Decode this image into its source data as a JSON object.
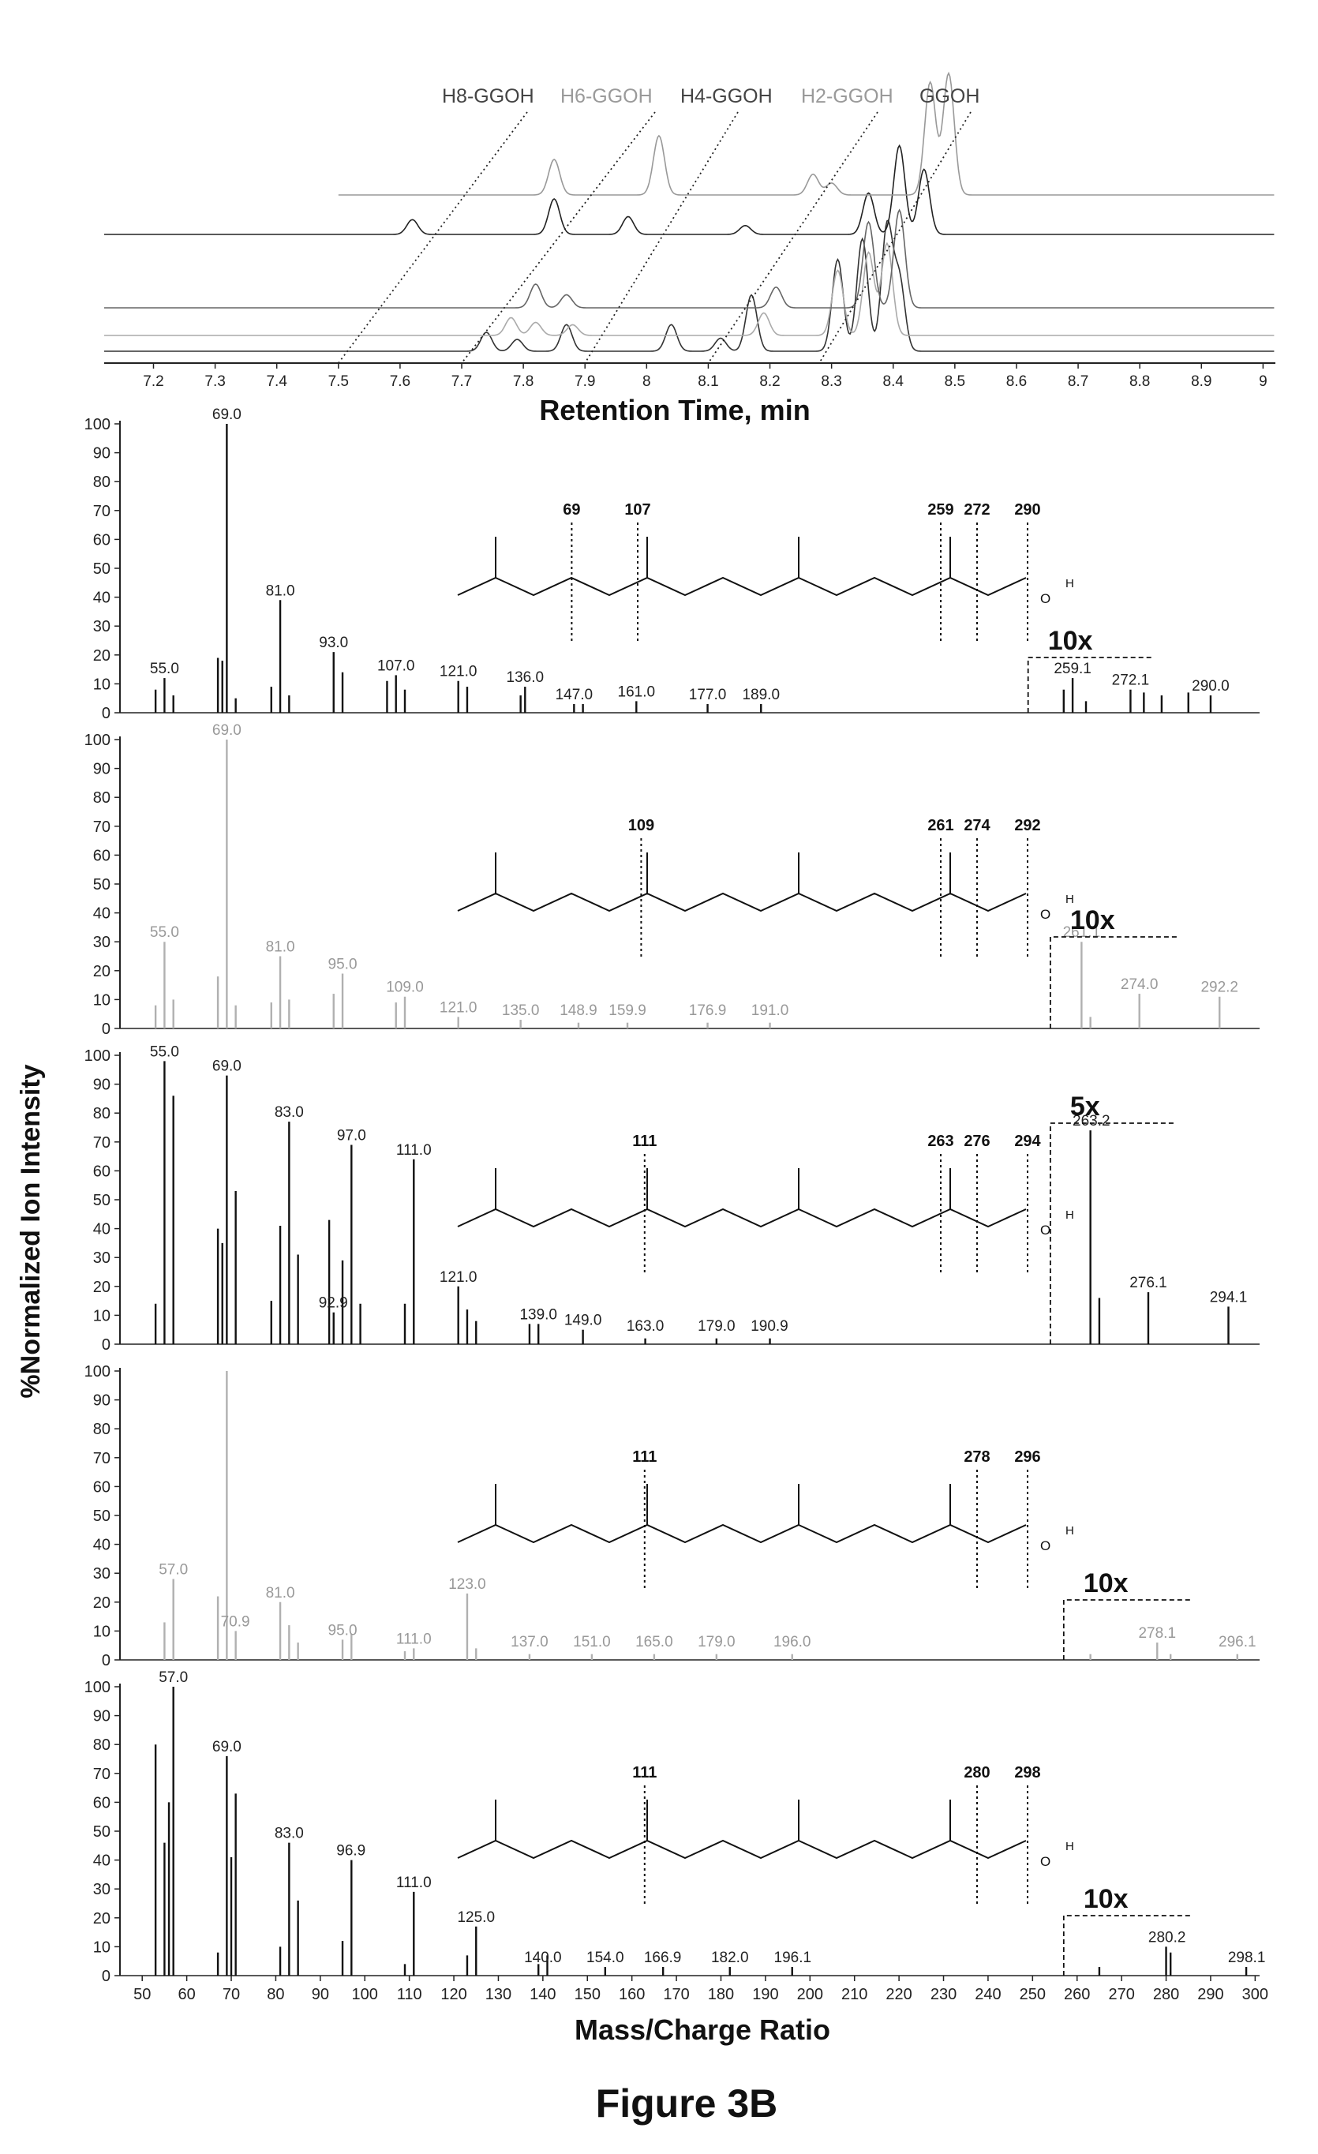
{
  "figure_title": "Figure 3B",
  "chart_data": [
    {
      "type": "line",
      "xlabel": "Retention Time, min",
      "xlim": [
        7.12,
        9.02
      ],
      "xticks": [
        "7.2",
        "7.3",
        "7.4",
        "7.5",
        "7.6",
        "7.7",
        "7.8",
        "7.9",
        "8",
        "8.1",
        "8.2",
        "8.3",
        "8.4",
        "8.5",
        "8.6",
        "8.7",
        "8.8",
        "8.9",
        "9"
      ],
      "compound_labels": [
        "H8-GGOH",
        "H6-GGOH",
        "H4-GGOH",
        "H2-GGOH",
        "GGOH"
      ],
      "series_colors": [
        "#333333",
        "#aaaaaa",
        "#666666",
        "#222222",
        "#999999"
      ],
      "series": [
        {
          "peaks": [
            [
              7.74,
              0.32
            ],
            [
              7.79,
              0.2
            ],
            [
              7.87,
              0.45
            ],
            [
              8.04,
              0.45
            ],
            [
              8.12,
              0.22
            ],
            [
              8.17,
              0.95
            ],
            [
              8.31,
              1.55
            ],
            [
              8.35,
              1.9
            ],
            [
              8.39,
              2.1
            ],
            [
              8.41,
              1.2
            ]
          ]
        },
        {
          "peaks": [
            [
              7.78,
              0.3
            ],
            [
              7.82,
              0.22
            ],
            [
              7.88,
              0.18
            ],
            [
              8.19,
              0.38
            ],
            [
              8.31,
              1.1
            ],
            [
              8.36,
              1.4
            ],
            [
              8.39,
              1.55
            ]
          ]
        },
        {
          "peaks": [
            [
              7.82,
              0.4
            ],
            [
              7.87,
              0.22
            ],
            [
              8.21,
              0.35
            ],
            [
              8.36,
              1.45
            ],
            [
              8.41,
              1.65
            ]
          ]
        },
        {
          "peaks": [
            [
              7.62,
              0.25
            ],
            [
              7.85,
              0.6
            ],
            [
              7.97,
              0.3
            ],
            [
              8.16,
              0.15
            ],
            [
              8.36,
              0.7
            ],
            [
              8.41,
              1.5
            ],
            [
              8.45,
              1.1
            ]
          ]
        },
        {
          "peaks": [
            [
              7.85,
              0.6
            ],
            [
              8.02,
              1.0
            ],
            [
              8.27,
              0.35
            ],
            [
              8.3,
              0.2
            ],
            [
              8.46,
              1.9
            ],
            [
              8.49,
              2.05
            ]
          ]
        }
      ]
    },
    {
      "type": "bar",
      "xlabel": "Mass/Charge Ratio",
      "ylabel": "%Normalized Ion Intensity",
      "xlim": [
        45,
        301
      ],
      "ylim": [
        0,
        100
      ],
      "xticks": [
        "50",
        "60",
        "70",
        "80",
        "90",
        "100",
        "110",
        "120",
        "130",
        "140",
        "150",
        "160",
        "170",
        "180",
        "190",
        "200",
        "210",
        "220",
        "230",
        "240",
        "250",
        "260",
        "270",
        "280",
        "290",
        "300"
      ],
      "yticks": [
        "0",
        "10",
        "20",
        "30",
        "40",
        "50",
        "60",
        "70",
        "80",
        "90",
        "100"
      ],
      "panels": [
        {
          "color": "#111111",
          "scale_label": "10x",
          "scale_from": 249,
          "mass": [
            53,
            55,
            57,
            67,
            68,
            69,
            71,
            79,
            81,
            83,
            93,
            95,
            105,
            107,
            109,
            121,
            123,
            135,
            136,
            147,
            149,
            161,
            177,
            189,
            257,
            259,
            262,
            272,
            275,
            279,
            285,
            290
          ],
          "intensity": [
            8,
            12,
            6,
            19,
            18,
            100,
            5,
            9,
            39,
            6,
            21,
            14,
            11,
            13,
            8,
            11,
            9,
            6,
            9,
            3,
            3,
            4,
            3,
            3,
            8,
            12,
            4,
            8,
            7,
            6,
            7,
            6
          ],
          "labels": [
            [
              55,
              "55.0"
            ],
            [
              69,
              "69.0"
            ],
            [
              81,
              "81.0"
            ],
            [
              93,
              "93.0"
            ],
            [
              107,
              "107.0"
            ],
            [
              121,
              "121.0"
            ],
            [
              136,
              "136.0"
            ],
            [
              147,
              "147.0"
            ],
            [
              161,
              "161.0"
            ],
            [
              177,
              "177.0"
            ],
            [
              189,
              "189.0"
            ],
            [
              259,
              "259.1"
            ],
            [
              272,
              "272.1"
            ],
            [
              290,
              "290.0"
            ]
          ],
          "cuts": [
            "69",
            "107",
            "259",
            "272",
            "290"
          ],
          "cut_x": [
            69,
            107,
            259,
            272,
            290
          ],
          "molecule": "GGOH"
        },
        {
          "color": "#b0b0b0",
          "scale_label": "10x",
          "scale_from": 254,
          "mass": [
            53,
            55,
            57,
            67,
            69,
            71,
            79,
            81,
            83,
            93,
            95,
            107,
            109,
            121,
            135,
            148,
            159,
            177,
            191,
            261,
            263,
            274,
            292
          ],
          "intensity": [
            8,
            30,
            10,
            18,
            100,
            8,
            9,
            25,
            10,
            12,
            19,
            9,
            11,
            4,
            3,
            2,
            2,
            2,
            2,
            30,
            4,
            12,
            11
          ],
          "labels": [
            [
              55,
              "55.0"
            ],
            [
              69,
              "69.0"
            ],
            [
              81,
              "81.0"
            ],
            [
              95,
              "95.0"
            ],
            [
              109,
              "109.0"
            ],
            [
              121,
              "121.0"
            ],
            [
              135,
              "135.0"
            ],
            [
              148,
              "148.9"
            ],
            [
              159,
              "159.9"
            ],
            [
              177,
              "176.9"
            ],
            [
              191,
              "191.0"
            ]
          ],
          "cuts": [
            "109",
            "261",
            "274",
            "292"
          ],
          "cut_x": [
            109,
            261,
            274,
            292
          ],
          "peak_labels_x": [
            [
              261,
              "261.1"
            ],
            [
              274,
              "274.0"
            ],
            [
              292,
              "292.2"
            ]
          ],
          "molecule": "H2-GGOH"
        },
        {
          "color": "#111111",
          "scale_label": "5x",
          "scale_from": 254,
          "mass": [
            53,
            55,
            57,
            67,
            68,
            69,
            71,
            79,
            81,
            83,
            85,
            92,
            93,
            95,
            97,
            99,
            109,
            111,
            121,
            123,
            125,
            137,
            139,
            149,
            163,
            179,
            191,
            263,
            265,
            276,
            294
          ],
          "intensity": [
            14,
            98,
            86,
            40,
            35,
            93,
            53,
            15,
            41,
            77,
            31,
            43,
            11,
            29,
            69,
            14,
            14,
            64,
            20,
            12,
            8,
            7,
            7,
            5,
            2,
            2,
            2,
            74,
            16,
            18,
            13
          ],
          "labels": [
            [
              55,
              "55.0"
            ],
            [
              69,
              "69.0"
            ],
            [
              83,
              "83.0"
            ],
            [
              92.9,
              "92.9"
            ],
            [
              97,
              "97.0"
            ],
            [
              111,
              "111.0"
            ],
            [
              121,
              "121.0"
            ],
            [
              139,
              "139.0"
            ],
            [
              149,
              "149.0"
            ],
            [
              163,
              "163.0"
            ],
            [
              179,
              "179.0"
            ],
            [
              190.9,
              "190.9"
            ],
            [
              263.2,
              "263.2"
            ],
            [
              276,
              "276.1"
            ],
            [
              294,
              "294.1"
            ]
          ],
          "cuts": [
            "111",
            "263",
            "276",
            "294"
          ],
          "cut_x": [
            111,
            263,
            276,
            294
          ],
          "molecule": "H4-GGOH"
        },
        {
          "color": "#b0b0b0",
          "scale_label": "10x",
          "scale_from": 257,
          "mass": [
            55,
            57,
            67,
            69,
            71,
            81,
            83,
            85,
            95,
            97,
            109,
            111,
            123,
            125,
            137,
            151,
            165,
            179,
            196,
            263,
            278,
            281,
            296
          ],
          "intensity": [
            13,
            28,
            22,
            100,
            10,
            20,
            12,
            6,
            7,
            9,
            3,
            4,
            23,
            4,
            2,
            2,
            2,
            2,
            2,
            2,
            6,
            2,
            2
          ],
          "labels": [
            [
              57,
              "57.0"
            ],
            [
              70.9,
              "70.9"
            ],
            [
              81,
              "81.0"
            ],
            [
              95,
              "95.0"
            ],
            [
              111,
              "111.0"
            ],
            [
              123,
              "123.0"
            ],
            [
              137,
              "137.0"
            ],
            [
              151,
              "151.0"
            ],
            [
              165,
              "165.0"
            ],
            [
              179,
              "179.0"
            ],
            [
              196,
              "196.0"
            ],
            [
              278,
              "278.1"
            ],
            [
              296,
              "296.1"
            ]
          ],
          "cuts": [
            "111",
            "278",
            "296"
          ],
          "cut_x": [
            111,
            278,
            296
          ],
          "molecule": "H6-GGOH"
        },
        {
          "color": "#111111",
          "scale_label": "10x",
          "scale_from": 257,
          "mass": [
            53,
            55,
            56,
            57,
            67,
            69,
            70,
            71,
            81,
            83,
            85,
            95,
            97,
            109,
            111,
            123,
            125,
            139,
            141,
            154,
            167,
            182,
            196,
            265,
            280,
            281,
            298
          ],
          "intensity": [
            80,
            46,
            60,
            100,
            8,
            76,
            41,
            63,
            10,
            46,
            26,
            12,
            40,
            4,
            29,
            7,
            17,
            4,
            7,
            3,
            3,
            3,
            3,
            3,
            10,
            8,
            3
          ],
          "labels": [
            [
              57,
              "57.0"
            ],
            [
              69,
              "69.0"
            ],
            [
              83,
              "83.0"
            ],
            [
              96.9,
              "96.9"
            ],
            [
              111,
              "111.0"
            ],
            [
              125,
              "125.0"
            ],
            [
              140,
              "140.0"
            ],
            [
              154,
              "154.0"
            ],
            [
              166.9,
              "166.9"
            ],
            [
              182,
              "182.0"
            ],
            [
              196.1,
              "196.1"
            ],
            [
              280.2,
              "280.2"
            ],
            [
              298.1,
              "298.1"
            ]
          ],
          "cuts": [
            "111",
            "280",
            "298"
          ],
          "cut_x": [
            111,
            280,
            298
          ],
          "molecule": "H8-GGOH"
        }
      ]
    }
  ]
}
